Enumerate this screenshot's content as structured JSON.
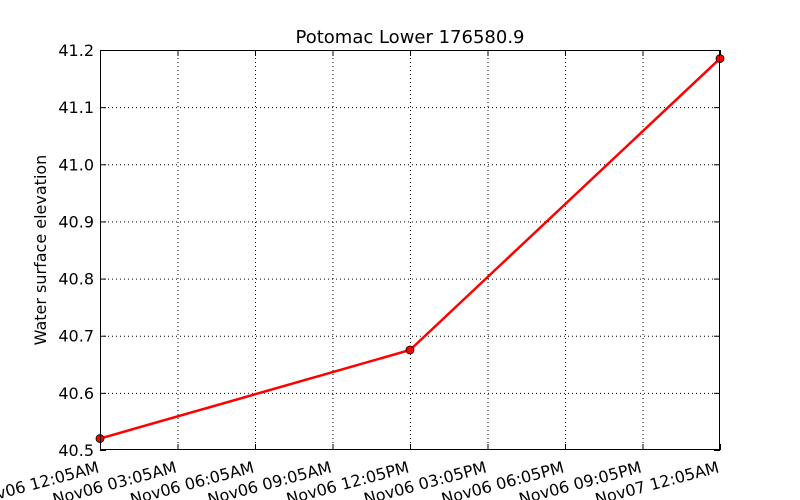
{
  "chart_data": {
    "type": "line",
    "title": "Potomac Lower 176580.9",
    "xlabel": "",
    "ylabel": "Water surface elevation",
    "x_tick_labels": [
      "Nov06 12:05AM",
      "Nov06 03:05AM",
      "Nov06 06:05AM",
      "Nov06 09:05AM",
      "Nov06 12:05PM",
      "Nov06 03:05PM",
      "Nov06 06:05PM",
      "Nov06 09:05PM",
      "Nov07 12:05AM"
    ],
    "y_tick_labels": [
      "40.5",
      "40.6",
      "40.7",
      "40.8",
      "40.9",
      "41.0",
      "41.1",
      "41.2"
    ],
    "ylim": [
      40.5,
      41.2
    ],
    "xlim_hours": [
      0,
      24
    ],
    "grid": true,
    "series": [
      {
        "color": "#ff0000",
        "points": [
          {
            "x": "Nov06 12:05AM",
            "y": 40.52
          },
          {
            "x": "Nov06 12:05PM",
            "y": 40.675
          },
          {
            "x": "Nov07 12:05AM",
            "y": 41.185
          }
        ]
      }
    ]
  }
}
